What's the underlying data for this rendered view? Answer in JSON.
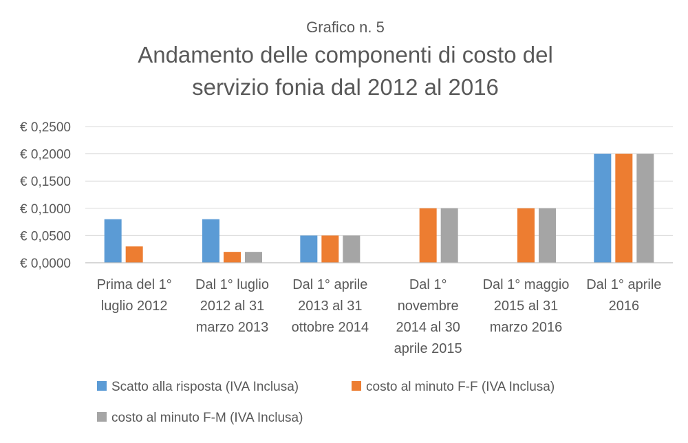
{
  "chart_data": {
    "type": "bar",
    "subtitle": "Grafico n. 5",
    "title_lines": [
      "Andamento delle componenti di costo del",
      "servizio fonia dal 2012 al 2016"
    ],
    "xlabel": "",
    "ylabel": "",
    "ylim": [
      0,
      0.25
    ],
    "y_ticks": [
      "€ 0,0000",
      "€ 0,0500",
      "€ 0,1000",
      "€ 0,1500",
      "€ 0,2000",
      "€ 0,2500"
    ],
    "grid": true,
    "legend_position": "bottom",
    "categories": [
      [
        "Prima del 1°",
        "luglio 2012"
      ],
      [
        "Dal 1° luglio",
        "2012 al 31",
        "marzo 2013"
      ],
      [
        "Dal 1° aprile",
        "2013 al 31",
        "ottobre 2014"
      ],
      [
        "Dal 1°",
        "novembre",
        "2014 al 30",
        "aprile 2015"
      ],
      [
        "Dal 1° maggio",
        "2015 al 31",
        "marzo 2016"
      ],
      [
        "Dal 1° aprile",
        "2016"
      ]
    ],
    "series": [
      {
        "name": "Scatto alla risposta (IVA Inclusa)",
        "color": "#5b9bd5",
        "values": [
          0.08,
          0.08,
          0.05,
          0,
          0,
          0.2
        ]
      },
      {
        "name": "costo al minuto F-F (IVA Inclusa)",
        "color": "#ed7d31",
        "values": [
          0.03,
          0.02,
          0.05,
          0.1,
          0.1,
          0.2
        ]
      },
      {
        "name": "costo al minuto F-M (IVA Inclusa)",
        "color": "#a5a5a5",
        "values": [
          0,
          0.02,
          0.05,
          0.1,
          0.1,
          0.2
        ]
      }
    ]
  }
}
